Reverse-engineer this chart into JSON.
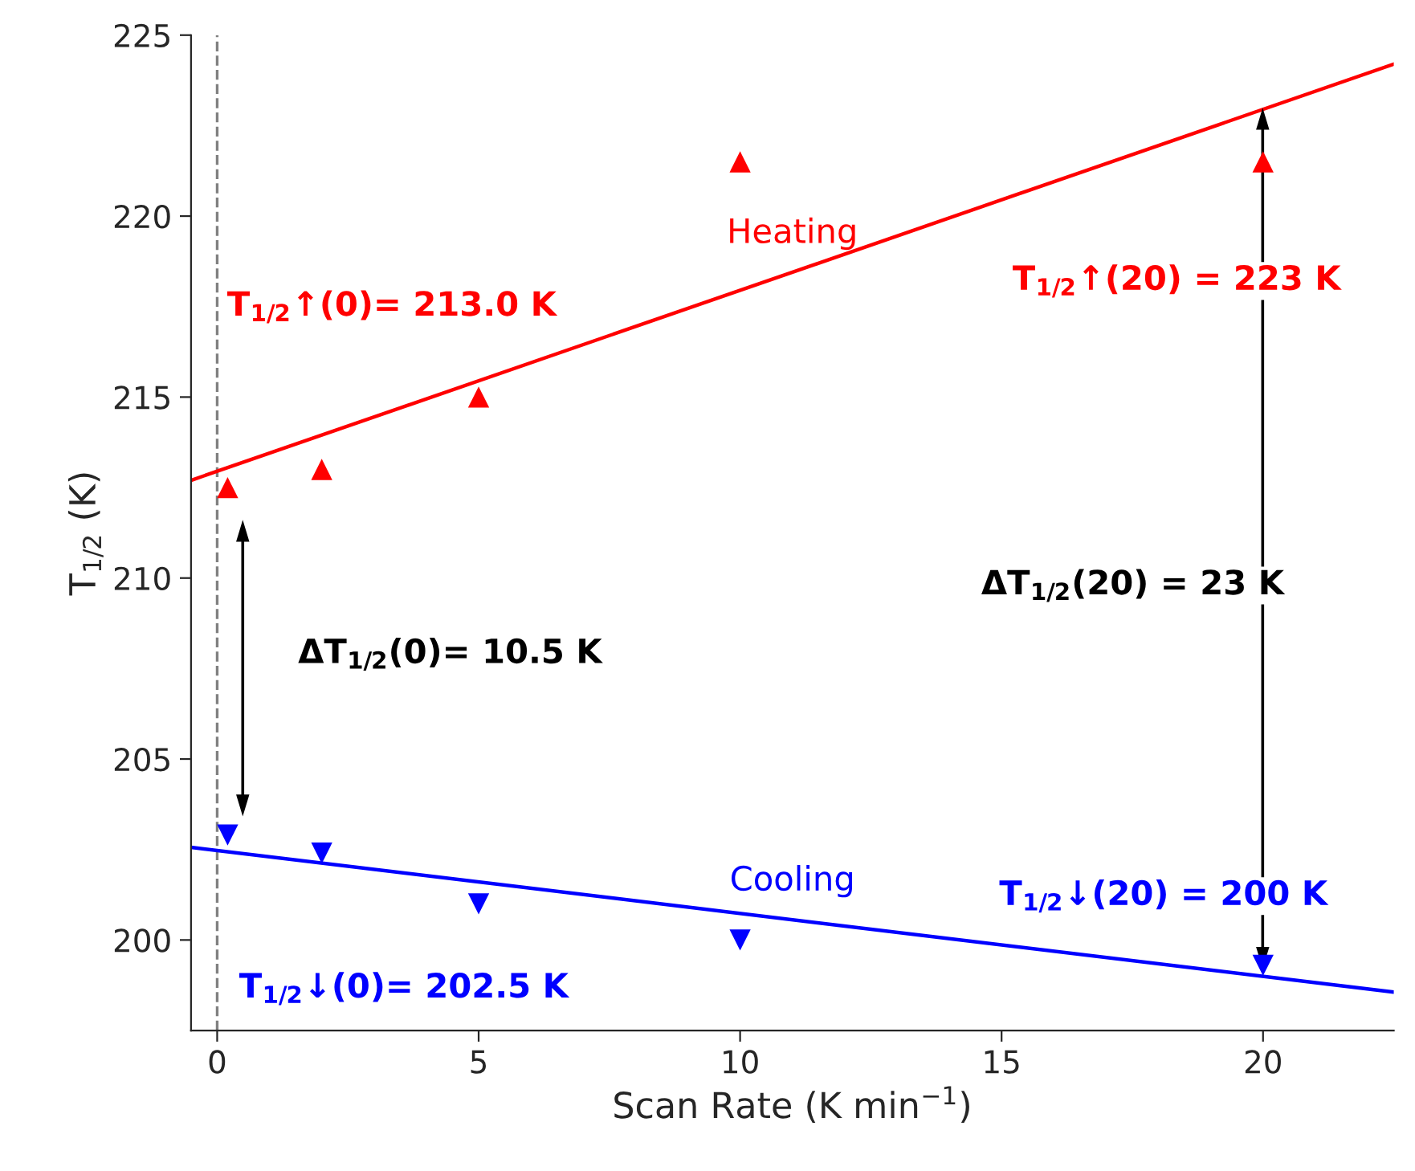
{
  "chart_data": {
    "type": "scatter",
    "xlabel": "Scan Rate (K min$^{−1}$)",
    "ylabel": "T$_{1/2}$ (K)",
    "xlim": [
      -0.5,
      22.5
    ],
    "ylim": [
      197.5,
      225
    ],
    "xticks": [
      0,
      5,
      10,
      15,
      20
    ],
    "yticks": [
      200,
      205,
      210,
      215,
      220,
      225
    ],
    "grid": false,
    "legend": false,
    "series": [
      {
        "marker": "triangle",
        "color": "#ff0000",
        "x": [
          0.2,
          2,
          5,
          10,
          20
        ],
        "values": [
          212.5,
          213,
          215,
          221.5,
          221.5
        ]
      },
      {
        "marker": "triangle_down",
        "color": "#0000ff",
        "x": [
          0.2,
          2,
          5,
          10,
          20
        ],
        "values": [
          202.9,
          202.4,
          201,
          200,
          199.3
        ]
      },
      {
        "type": "line",
        "name": "Heating",
        "color": "#ff0000",
        "x": [
          -0.5,
          22.5
        ],
        "values": [
          212.7,
          224.2
        ]
      },
      {
        "type": "line",
        "name": "Cooling",
        "color": "#0000ff",
        "x": [
          -0.5,
          22.5
        ],
        "values": [
          202.56,
          198.56
        ]
      }
    ],
    "ref_lines": [
      {
        "axis": "x",
        "value": 0,
        "color": "#808080",
        "line_style": "dashed"
      }
    ],
    "annotations": [
      "T$_{1/2}$↑(0)= 213.0 K",
      "T$_{1/2}$↑(20) = 223 K",
      "ΔT$_{1/2}$(0)= 10.5 K",
      "ΔT$_{1/2}$(20) = 23 K",
      "T$_{1/2}$↓(20) = 200 K",
      "T$_{1/2}$↓(0)= 202.5 K"
    ]
  }
}
